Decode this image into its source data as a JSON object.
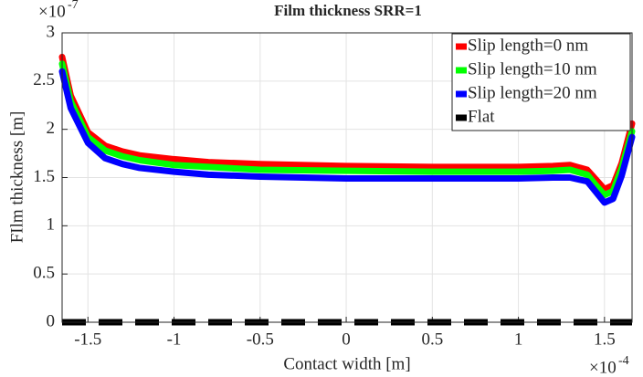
{
  "chart_data": {
    "type": "line",
    "title": "Film thickness SRR=1",
    "xlabel": "Contact width [m]",
    "ylabel": "FIlm thickness [m]",
    "x_exponent_base": "×10",
    "x_exponent_power": "-4",
    "y_exponent_base": "×10",
    "y_exponent_power": "-7",
    "x": [
      -1.65,
      -1.6,
      -1.5,
      -1.4,
      -1.3,
      -1.2,
      -1.0,
      -0.8,
      -0.5,
      0,
      0.5,
      1.0,
      1.2,
      1.3,
      1.4,
      1.45,
      1.5,
      1.55,
      1.6,
      1.66
    ],
    "series": [
      {
        "name": "Slip length=0 nm",
        "color": "#ff0000",
        "dash": false,
        "values": [
          2.75,
          2.35,
          1.97,
          1.83,
          1.77,
          1.73,
          1.69,
          1.66,
          1.64,
          1.62,
          1.61,
          1.61,
          1.62,
          1.63,
          1.58,
          1.48,
          1.38,
          1.42,
          1.65,
          2.06
        ]
      },
      {
        "name": "Slip length=10 nm",
        "color": "#00ff00",
        "dash": false,
        "values": [
          2.68,
          2.29,
          1.92,
          1.78,
          1.72,
          1.68,
          1.63,
          1.61,
          1.58,
          1.57,
          1.56,
          1.56,
          1.57,
          1.58,
          1.53,
          1.42,
          1.32,
          1.36,
          1.6,
          1.98
        ]
      },
      {
        "name": "Slip length=20 nm",
        "color": "#0000ff",
        "dash": false,
        "values": [
          2.6,
          2.22,
          1.86,
          1.7,
          1.64,
          1.6,
          1.56,
          1.53,
          1.51,
          1.49,
          1.49,
          1.49,
          1.5,
          1.5,
          1.46,
          1.35,
          1.24,
          1.28,
          1.52,
          1.92
        ]
      },
      {
        "name": "Flat",
        "color": "#000000",
        "dash": true,
        "values": [
          0,
          0,
          0,
          0,
          0,
          0,
          0,
          0,
          0,
          0,
          0,
          0,
          0,
          0,
          0,
          0,
          0,
          0,
          0,
          0
        ]
      }
    ],
    "xlim": [
      -1.65,
      1.66
    ],
    "xticks": [
      -1.5,
      -1,
      -0.5,
      0,
      0.5,
      1,
      1.5
    ],
    "ylim": [
      0,
      3
    ],
    "yticks": [
      0,
      0.5,
      1,
      1.5,
      2,
      2.5,
      3
    ],
    "grid": true,
    "legend": "top-right"
  }
}
